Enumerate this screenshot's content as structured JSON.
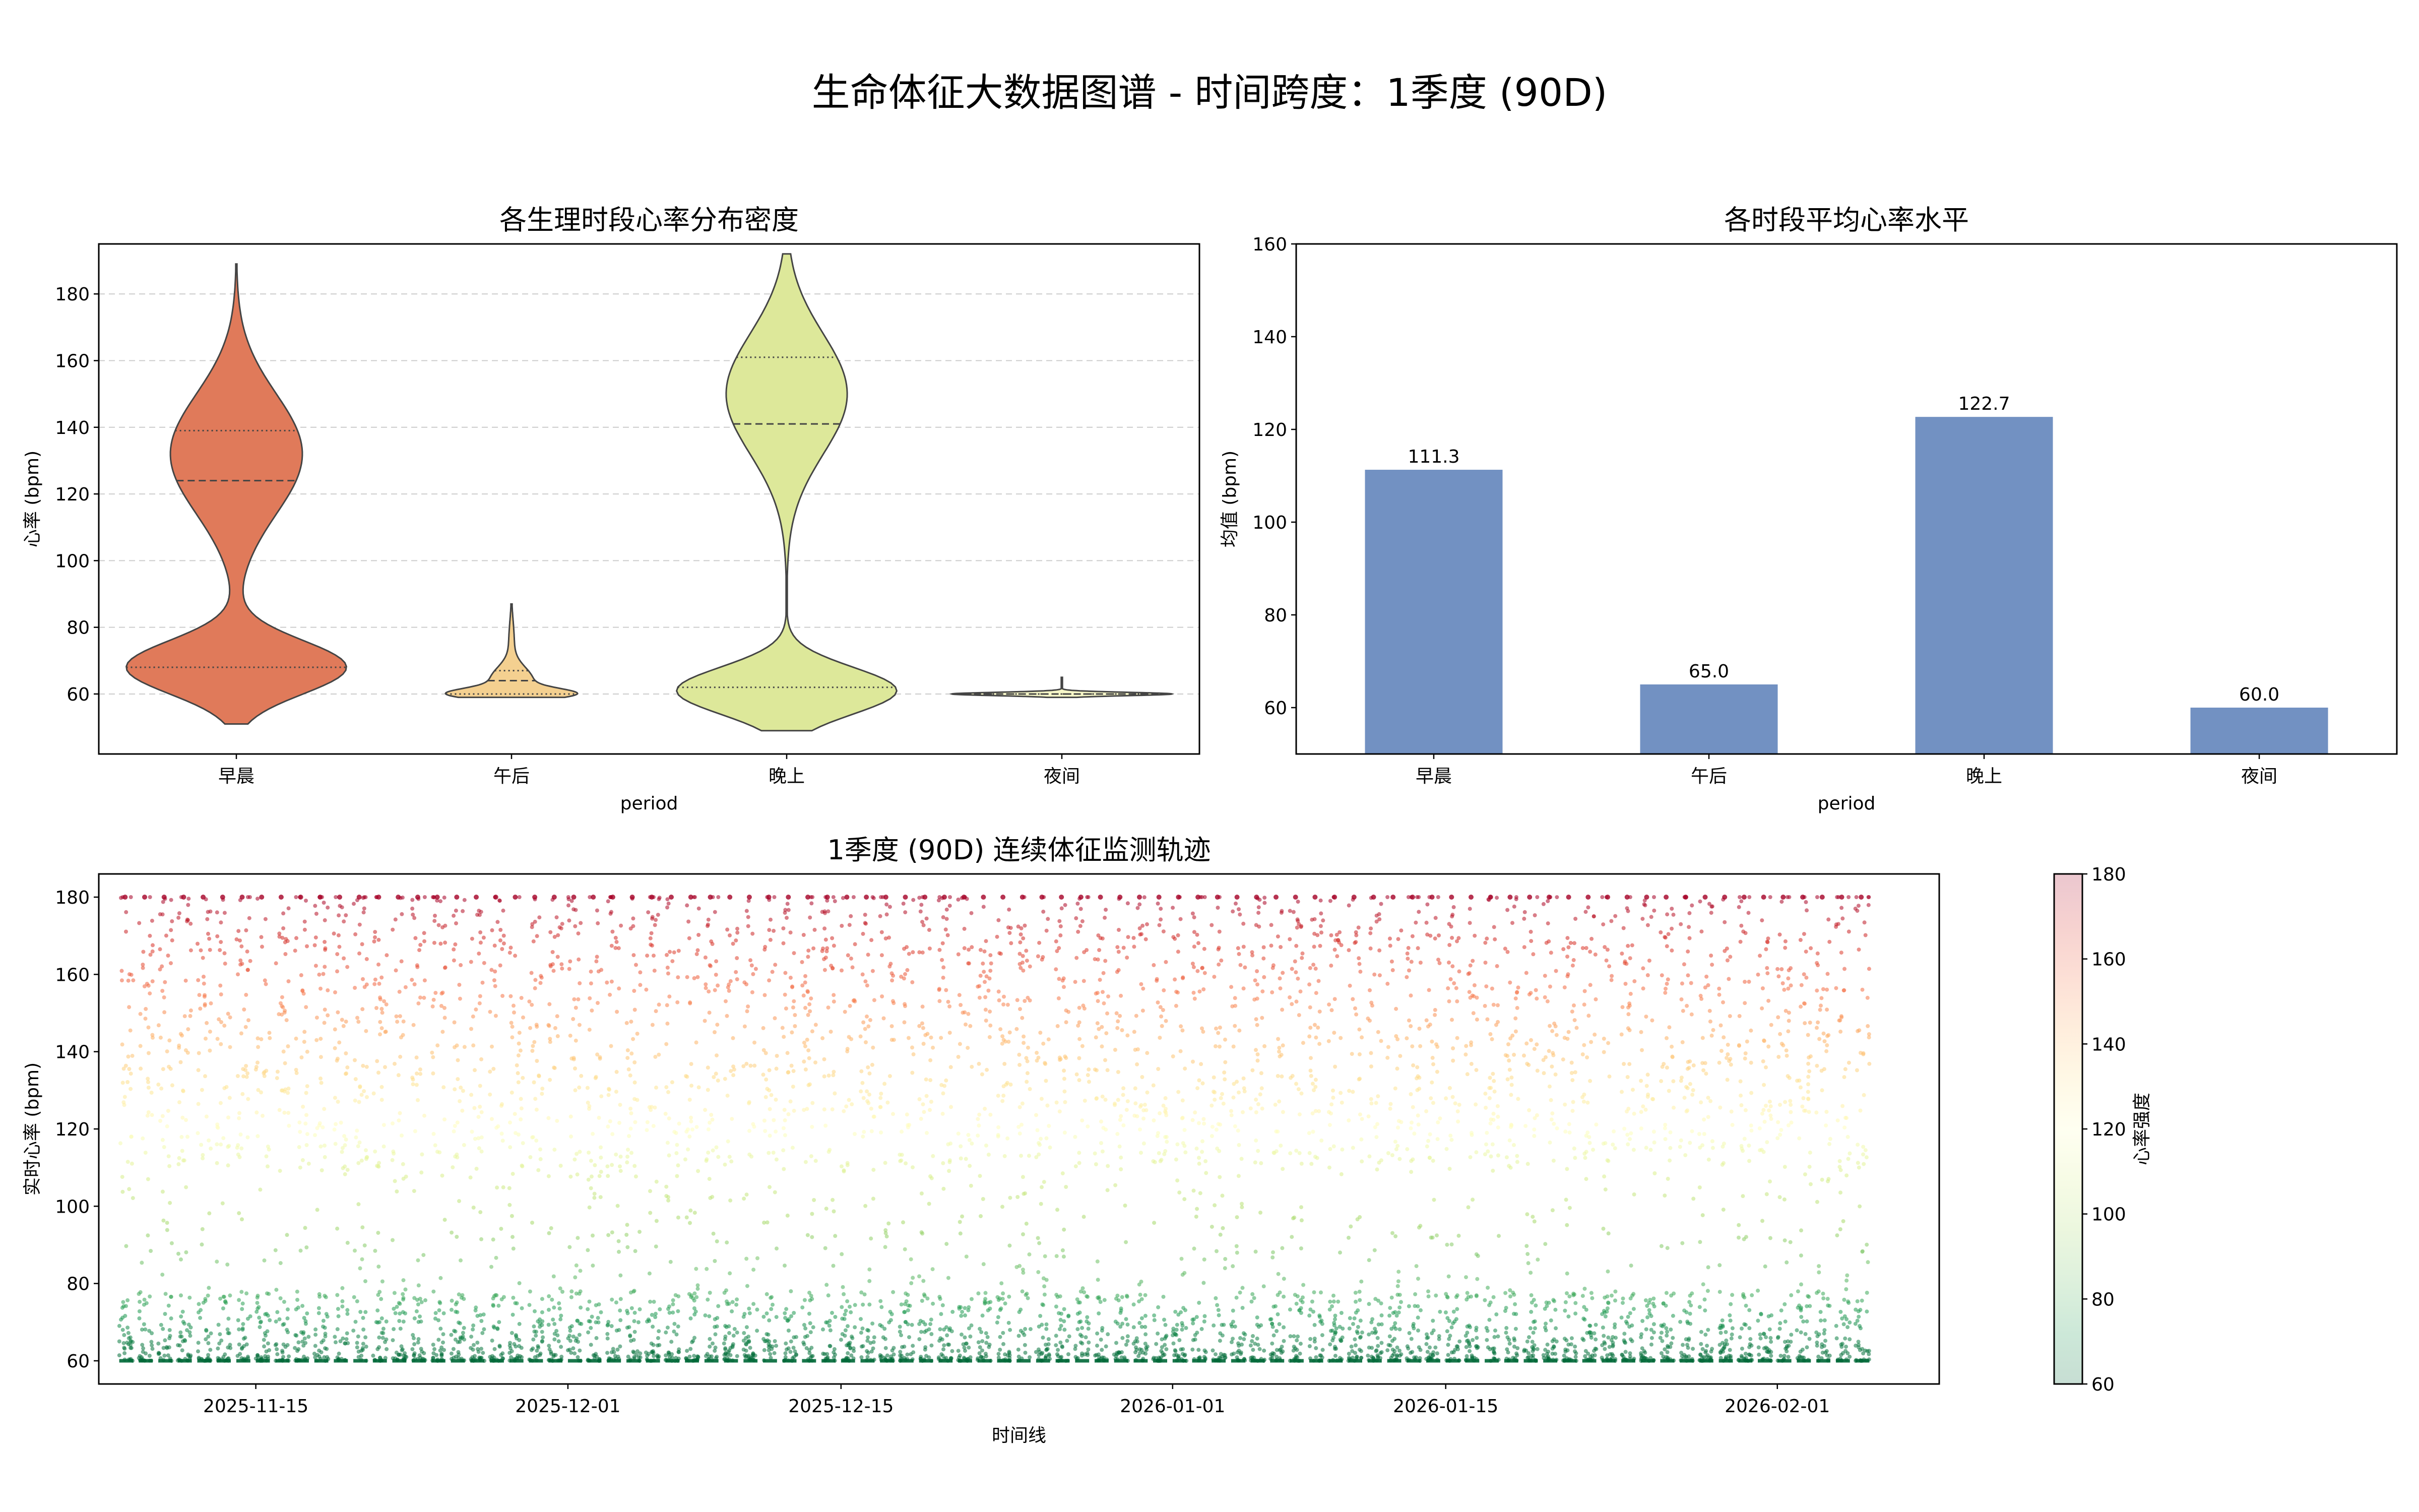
{
  "suptitle": "生命体征大数据图谱 - 时间跨度：1季度 (90D)",
  "chart_data": [
    {
      "type": "violin",
      "title": "各生理时段心率分布密度",
      "xlabel": "period",
      "ylabel": "心率 (bpm)",
      "categories": [
        "早晨",
        "午后",
        "晚上",
        "夜间"
      ],
      "ylim": [
        42,
        195
      ],
      "yticks": [
        60,
        80,
        100,
        120,
        140,
        160,
        180
      ],
      "grid": true,
      "colors": [
        "#e07a5a",
        "#f4d090",
        "#dde89a",
        "#f7f7c8"
      ],
      "distributions": [
        {
          "min": 51,
          "max": 189,
          "q1": 68,
          "median": 124,
          "q3": 139
        },
        {
          "min": 59,
          "max": 87,
          "q1": 60,
          "median": 64,
          "q3": 67
        },
        {
          "min": 49,
          "max": 192,
          "q1": 62,
          "median": 141,
          "q3": 161
        },
        {
          "min": 59,
          "max": 65,
          "q1": 60,
          "median": 60,
          "q3": 60
        }
      ]
    },
    {
      "type": "bar",
      "title": "各时段平均心率水平",
      "xlabel": "period",
      "ylabel": "均值 (bpm)",
      "categories": [
        "早晨",
        "午后",
        "晚上",
        "夜间"
      ],
      "values": [
        111.3,
        65.0,
        122.7,
        60.0
      ],
      "labels": [
        "111.3",
        "65.0",
        "122.7",
        "60.0"
      ],
      "ylim": [
        50,
        160
      ],
      "yticks": [
        60,
        80,
        100,
        120,
        140,
        160
      ],
      "color": "#7291c2"
    },
    {
      "type": "scatter",
      "title": "1季度 (90D) 连续体征监测轨迹",
      "xlabel": "时间线",
      "ylabel": "实时心率 (bpm)",
      "x_start": "2025-11-08",
      "x_end": "2026-02-06",
      "days": 90,
      "xticks": [
        {
          "label": "2025-11-15",
          "day": 7
        },
        {
          "label": "2025-12-01",
          "day": 23
        },
        {
          "label": "2025-12-15",
          "day": 37
        },
        {
          "label": "2026-01-01",
          "day": 54
        },
        {
          "label": "2026-01-15",
          "day": 68
        },
        {
          "label": "2026-02-01",
          "day": 85
        }
      ],
      "ylim": [
        54,
        186
      ],
      "yticks": [
        60,
        80,
        100,
        120,
        140,
        160,
        180
      ],
      "colormap": "RdYlGn_r",
      "colorbar": {
        "label": "心率强度",
        "range": [
          60,
          180
        ],
        "ticks": [
          60,
          80,
          100,
          120,
          140,
          160,
          180
        ]
      }
    }
  ]
}
